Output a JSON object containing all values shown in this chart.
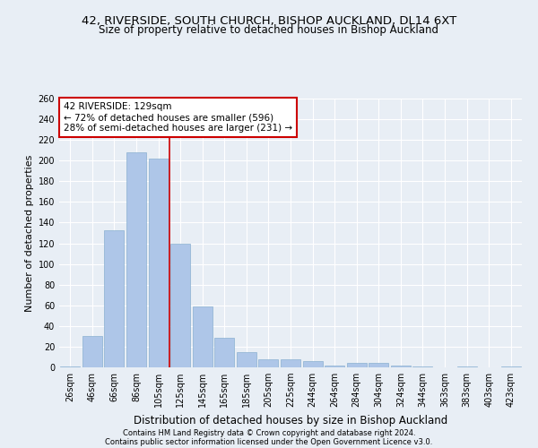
{
  "title_line1": "42, RIVERSIDE, SOUTH CHURCH, BISHOP AUCKLAND, DL14 6XT",
  "title_line2": "Size of property relative to detached houses in Bishop Auckland",
  "xlabel": "Distribution of detached houses by size in Bishop Auckland",
  "ylabel": "Number of detached properties",
  "footnote1": "Contains HM Land Registry data © Crown copyright and database right 2024.",
  "footnote2": "Contains public sector information licensed under the Open Government Licence v3.0.",
  "bar_labels": [
    "26sqm",
    "46sqm",
    "66sqm",
    "86sqm",
    "105sqm",
    "125sqm",
    "145sqm",
    "165sqm",
    "185sqm",
    "205sqm",
    "225sqm",
    "244sqm",
    "264sqm",
    "284sqm",
    "304sqm",
    "324sqm",
    "344sqm",
    "363sqm",
    "383sqm",
    "403sqm",
    "423sqm"
  ],
  "bar_values": [
    1,
    30,
    133,
    208,
    202,
    120,
    59,
    29,
    15,
    8,
    8,
    6,
    2,
    4,
    4,
    2,
    1,
    0,
    1,
    0,
    1
  ],
  "bar_color": "#aec6e8",
  "bar_edgecolor": "#8ab0d0",
  "vline_color": "#cc0000",
  "annotation_text": "42 RIVERSIDE: 129sqm\n← 72% of detached houses are smaller (596)\n28% of semi-detached houses are larger (231) →",
  "annotation_box_facecolor": "#ffffff",
  "annotation_box_edgecolor": "#cc0000",
  "ylim": [
    0,
    260
  ],
  "yticks": [
    0,
    20,
    40,
    60,
    80,
    100,
    120,
    140,
    160,
    180,
    200,
    220,
    240,
    260
  ],
  "background_color": "#e8eef5",
  "grid_color": "#ffffff",
  "title_fontsize": 9.5,
  "subtitle_fontsize": 8.5,
  "xlabel_fontsize": 8.5,
  "ylabel_fontsize": 8,
  "tick_fontsize": 7,
  "annot_fontsize": 7.5,
  "footnote_fontsize": 6
}
